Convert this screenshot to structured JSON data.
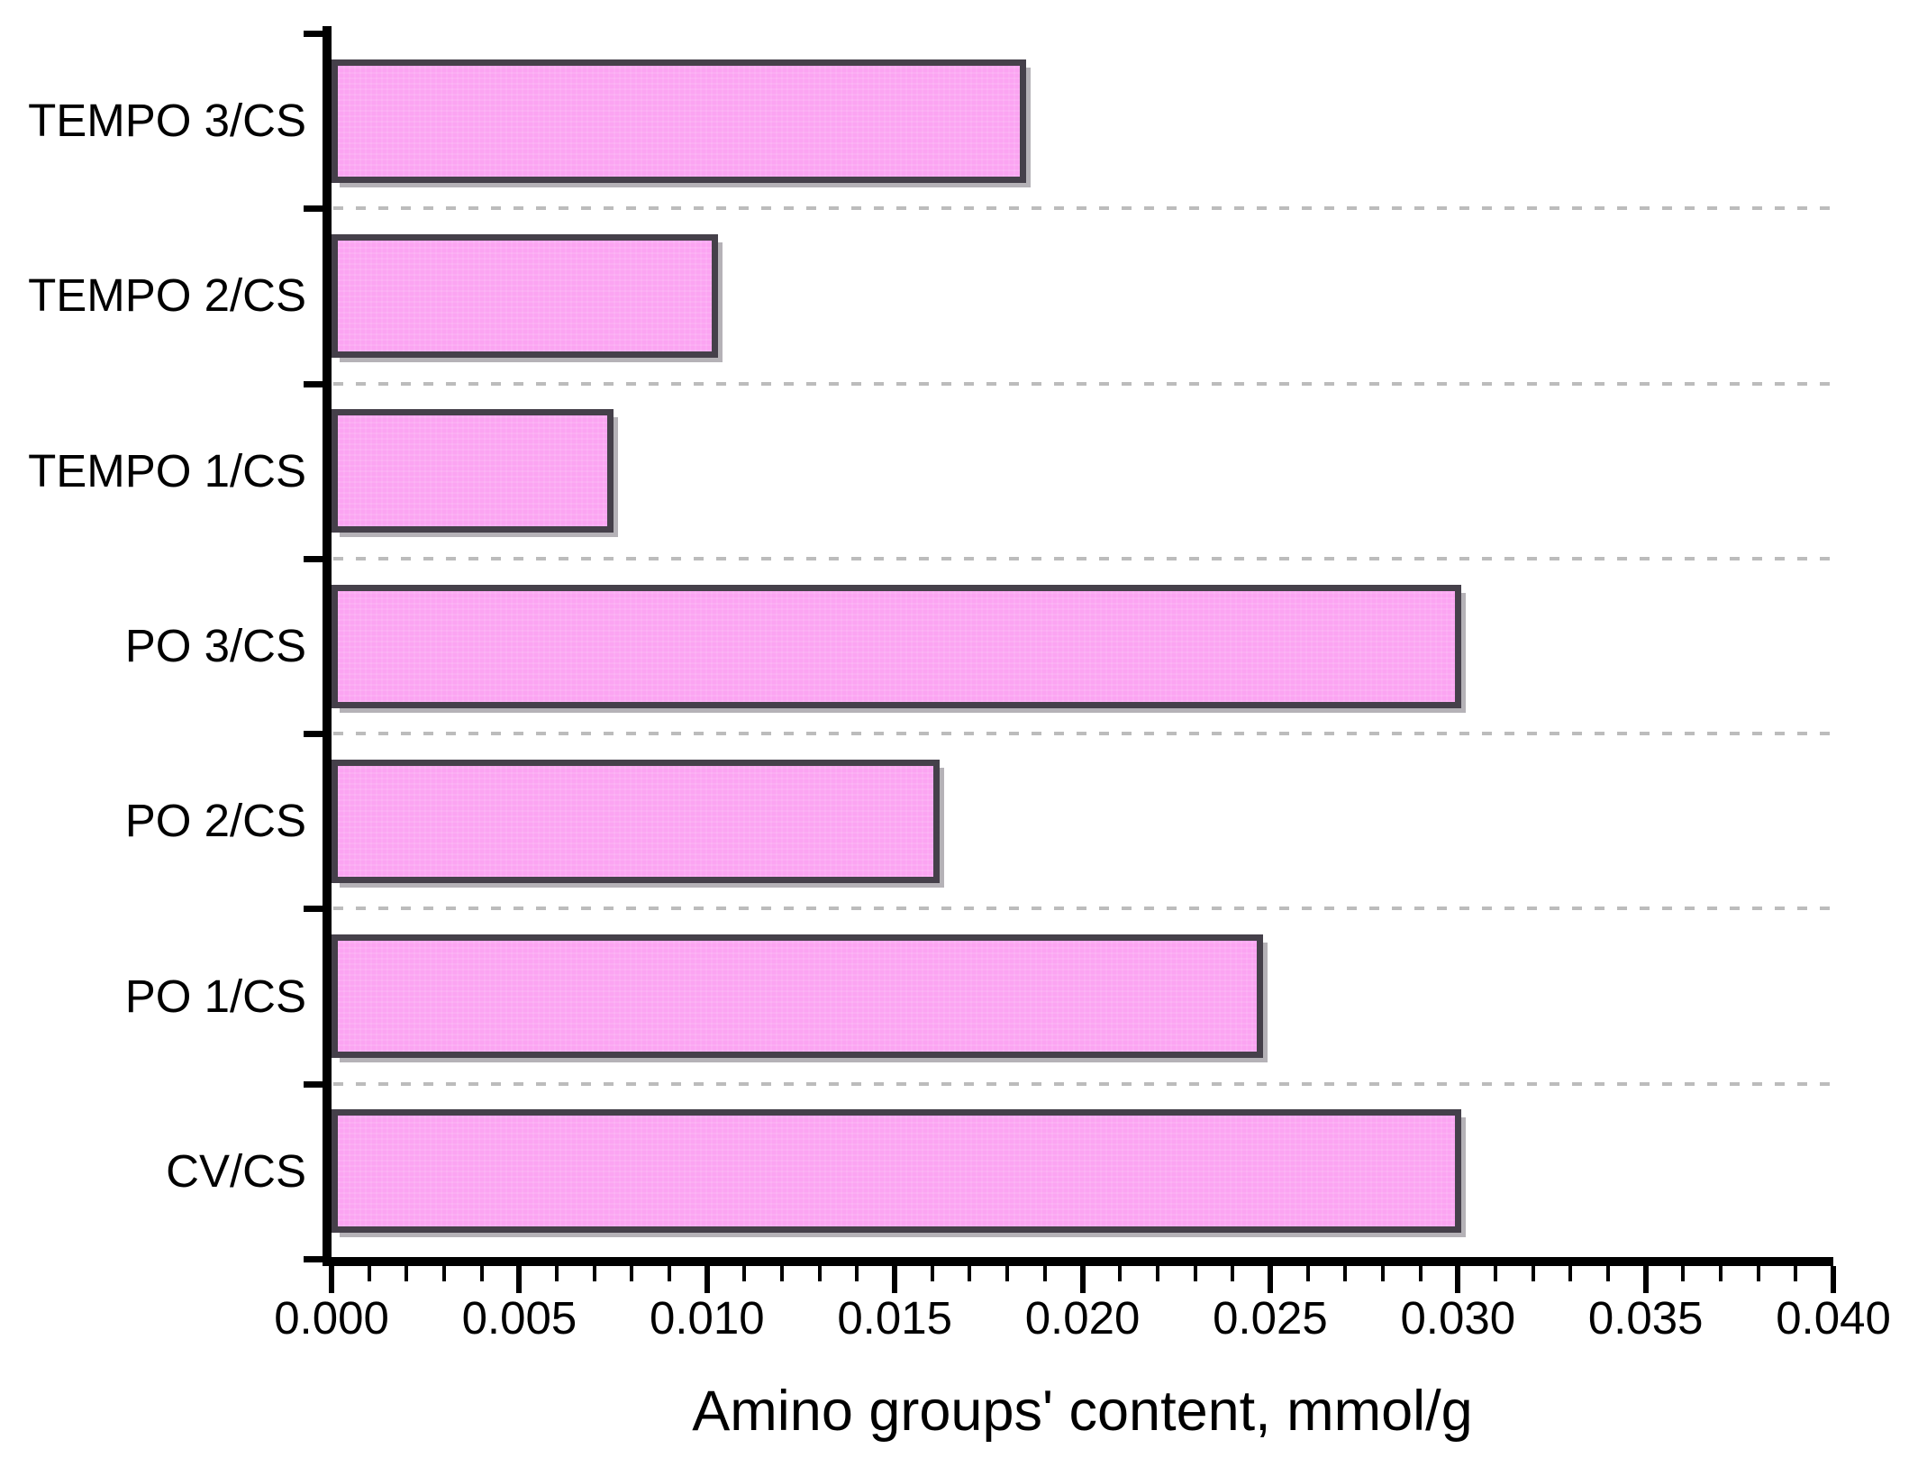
{
  "figure": {
    "background": "#ffffff"
  },
  "chart_data": {
    "type": "bar",
    "orientation": "horizontal",
    "title": "",
    "xlabel": "Amino groups' content, mmol/g",
    "ylabel": "",
    "categories_top_to_bottom": [
      "TEMPO 3/CS",
      "TEMPO 2/CS",
      "TEMPO 1/CS",
      "PO 3/CS",
      "PO 2/CS",
      "PO 1/CS",
      "CV/CS"
    ],
    "values_mmol_per_g": [
      0.0185,
      0.0103,
      0.0075,
      0.0301,
      0.0162,
      0.0248,
      0.0301
    ],
    "xlim": [
      0,
      0.04
    ],
    "x_major_tick_step": 0.005,
    "x_minor_tick_step": 0.001,
    "x_tick_labels": [
      "0.000",
      "0.005",
      "0.010",
      "0.015",
      "0.020",
      "0.025",
      "0.030",
      "0.035",
      "0.040"
    ],
    "grid": "dashed horizontal separators between category rows",
    "legend": "none",
    "colors": {
      "bar_fill": "#fba4f2",
      "bar_border": "#45404a",
      "axis": "#000000",
      "gridline": "#bcbcbc",
      "text": "#000000"
    }
  }
}
